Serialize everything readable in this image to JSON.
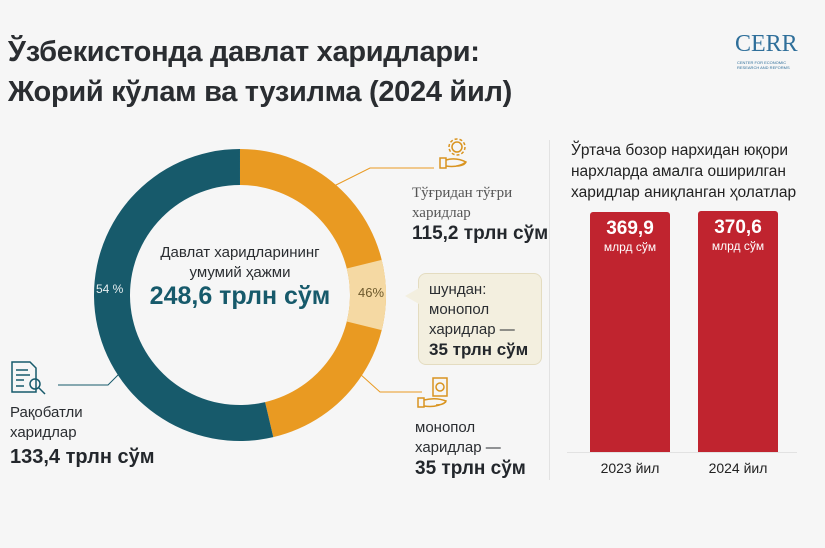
{
  "header": {
    "title_line1": "Ўзбекистонда давлат харидлари:",
    "title_line2": "Жорий кўлам ва тузилма (2024 йил)",
    "logo": "CERR",
    "logo_sub": "CENTER FOR ECONOMIC RESEARCH AND REFORMS"
  },
  "chart_data": [
    {
      "type": "pie",
      "variant": "donut",
      "center_label": "Давлат харидларининг умумий ҳажми",
      "center_value": "248,6 трлн сўм",
      "slices": [
        {
          "name": "Рақобатли харидлар",
          "value": 133.4,
          "percent": 54,
          "percent_label": "54 %",
          "value_label": "133,4 трлн сўм",
          "color": "#175a6b"
        },
        {
          "name": "Тўғридан тўғри харидлар",
          "value": 115.2,
          "percent": 46,
          "percent_label": "46%",
          "value_label": "115,2 трлн сўм",
          "color": "#e99a22"
        }
      ],
      "sub_slice": {
        "name": "монопол харидлар",
        "value": 35,
        "value_label": "35 трлн сўм",
        "color": "#f5d9a3"
      },
      "callout": {
        "line1": "шундан:",
        "line2": "монопол",
        "line3": "харидлар —",
        "value": "35 трлн сўм"
      },
      "monopoly_label": {
        "line1": "монопол",
        "line2": "харидлар —",
        "value": "35 трлн сўм"
      }
    },
    {
      "type": "bar",
      "title": "Ўртача бозор нархидан юқори нархларда амалга оширилган харидлар аниқланган ҳолатлар",
      "categories": [
        "2023 йил",
        "2024 йил"
      ],
      "values": [
        369.9,
        370.6
      ],
      "value_labels": [
        "369,9",
        "370,6"
      ],
      "unit": "млрд сўм",
      "color": "#c0242f",
      "ylim": [
        0,
        400
      ]
    }
  ],
  "labels": {
    "direct_line1": "Тўғридан тўғри",
    "direct_line2": "харидлар",
    "competitive_line1": "Рақобатли",
    "competitive_line2": "харидлар",
    "bar_title_line1": "Ўртача бозор нархидан юқори",
    "bar_title_line2": "нархларда амалга оширилган",
    "bar_title_line3": "харидлар аниқланган ҳолатлар"
  },
  "icons": {
    "direct": "hand-gear-icon",
    "monopoly": "hand-document-icon",
    "competitive": "document-search-icon"
  }
}
